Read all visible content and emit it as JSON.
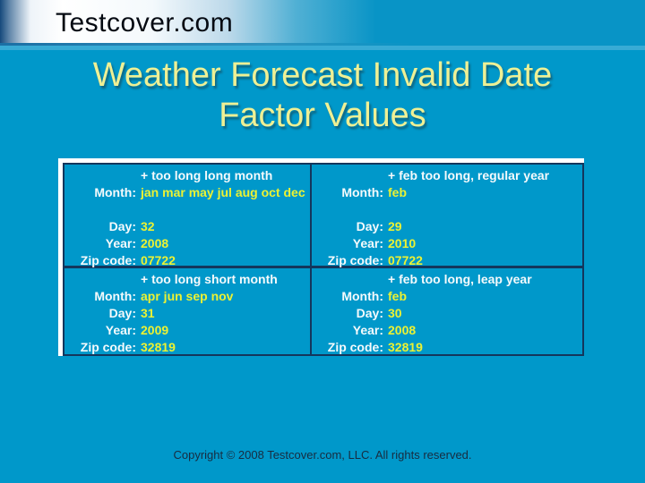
{
  "brand": "Testcover.com",
  "title": {
    "line1": "Weather Forecast Invalid Date",
    "line2": "Factor Values"
  },
  "colors": {
    "background": "#0098ca",
    "band_right": "#0894c6",
    "band_dark_edge": "#16497c",
    "title_text": "#eef095",
    "label_text": "#f5fafc",
    "value_text": "#ecf233",
    "table_border": "#14365c",
    "table_highlight": "#ffffff",
    "brand_text": "#050a12",
    "footer_text": "#182c40"
  },
  "table": {
    "cells": [
      {
        "header": "+ too long long month",
        "rows": [
          {
            "label": "Month:",
            "value": "jan mar may jul aug oct dec"
          },
          {
            "label": "Day:",
            "value": "32"
          },
          {
            "label": "Year:",
            "value": "2008"
          },
          {
            "label": "Zip code:",
            "value": "07722"
          }
        ]
      },
      {
        "header": "+ feb too long, regular year",
        "rows": [
          {
            "label": "Month:",
            "value": "feb"
          },
          {
            "label": "Day:",
            "value": "29"
          },
          {
            "label": "Year:",
            "value": "2010"
          },
          {
            "label": "Zip code:",
            "value": "07722"
          }
        ]
      },
      {
        "header": "+ too long short month",
        "rows": [
          {
            "label": "Month:",
            "value": "apr jun sep nov"
          },
          {
            "label": "Day:",
            "value": "31"
          },
          {
            "label": "Year:",
            "value": "2009"
          },
          {
            "label": "Zip code:",
            "value": "32819"
          }
        ]
      },
      {
        "header": "+ feb too long, leap year",
        "rows": [
          {
            "label": "Month:",
            "value": "feb"
          },
          {
            "label": "Day:",
            "value": "30"
          },
          {
            "label": "Year:",
            "value": "2008"
          },
          {
            "label": "Zip code:",
            "value": "32819"
          }
        ]
      }
    ]
  },
  "footer": {
    "copyright": "Copyright © 2008 Testcover.com, LLC. All rights reserved."
  }
}
